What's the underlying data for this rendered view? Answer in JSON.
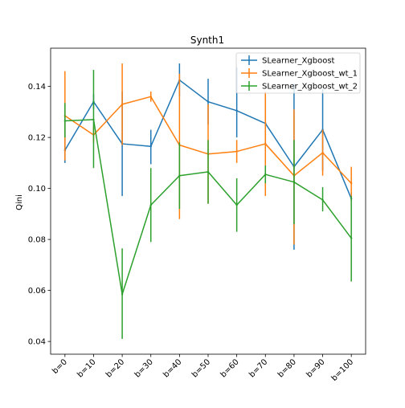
{
  "chart_data": {
    "type": "line",
    "title": "Synth1",
    "xlabel": "",
    "ylabel": "Qini",
    "categories": [
      "b=0",
      "b=10",
      "b=20",
      "b=30",
      "b=40",
      "b=50",
      "b=60",
      "b=70",
      "b=80",
      "b=90",
      "b=100"
    ],
    "ylim": [
      0.035,
      0.155
    ],
    "yticks": [
      0.04,
      0.06,
      0.08,
      0.1,
      0.12,
      0.14
    ],
    "ytick_labels": [
      "0.04",
      "0.06",
      "0.08",
      "0.10",
      "0.12",
      "0.14"
    ],
    "grid": false,
    "legend_position": "top-right",
    "series": [
      {
        "name": "SLearner_Xgboost",
        "color": "#1f77b4",
        "values": [
          0.115,
          0.134,
          0.1175,
          0.1165,
          0.1425,
          0.134,
          0.1305,
          0.1255,
          0.1085,
          0.123,
          0.096
        ],
        "err_low": [
          0.11,
          0.131,
          0.097,
          0.1095,
          0.136,
          0.125,
          0.12,
          0.117,
          0.076,
          0.107,
          0.095
        ],
        "err_high": [
          0.128,
          0.137,
          0.138,
          0.123,
          0.149,
          0.143,
          0.1475,
          0.136,
          0.141,
          0.139,
          0.0985
        ]
      },
      {
        "name": "SLearner_Xgboost_wt_1",
        "color": "#ff7f0e",
        "values": [
          0.1285,
          0.121,
          0.133,
          0.136,
          0.117,
          0.1135,
          0.1145,
          0.1175,
          0.105,
          0.114,
          0.102
        ],
        "err_low": [
          0.111,
          0.118,
          0.117,
          0.134,
          0.088,
          0.094,
          0.11,
          0.097,
          0.078,
          0.105,
          0.095
        ],
        "err_high": [
          0.146,
          0.124,
          0.149,
          0.138,
          0.145,
          0.133,
          0.119,
          0.138,
          0.131,
          0.123,
          0.1085
        ]
      },
      {
        "name": "SLearner_Xgboost_wt_2",
        "color": "#2ca02c",
        "values": [
          0.1265,
          0.127,
          0.0585,
          0.0935,
          0.105,
          0.1065,
          0.0935,
          0.1055,
          0.1025,
          0.0955,
          0.0805
        ],
        "err_low": [
          0.12,
          0.108,
          0.041,
          0.079,
          0.092,
          0.094,
          0.083,
          0.102,
          0.086,
          0.091,
          0.0635
        ],
        "err_high": [
          0.1335,
          0.1465,
          0.0765,
          0.108,
          0.118,
          0.119,
          0.104,
          0.109,
          0.119,
          0.1005,
          0.097
        ]
      }
    ]
  }
}
